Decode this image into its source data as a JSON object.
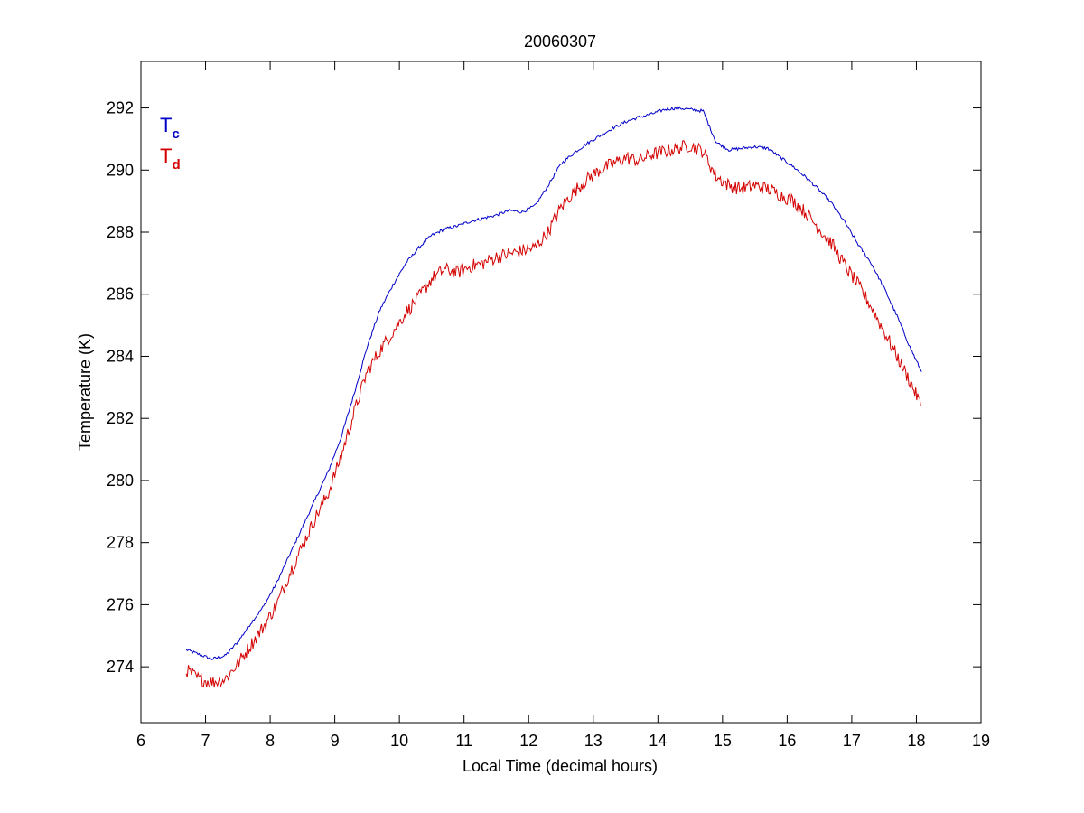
{
  "chart_data": {
    "type": "line",
    "title": "20060307",
    "xlabel": "Local Time (decimal hours)",
    "ylabel": "Temperature (K)",
    "xlim": [
      6,
      19
    ],
    "ylim": [
      272.2,
      293.5
    ],
    "xticks": [
      6,
      7,
      8,
      9,
      10,
      11,
      12,
      13,
      14,
      15,
      16,
      17,
      18,
      19
    ],
    "yticks": [
      274,
      276,
      278,
      280,
      282,
      284,
      286,
      288,
      290,
      292
    ],
    "grid": false,
    "legend_position": "top-left",
    "series": [
      {
        "name_main": "T",
        "name_sub": "c",
        "color": "#0000c8",
        "x": [
          6.7,
          6.9,
          7.1,
          7.3,
          7.5,
          7.7,
          7.9,
          8.1,
          8.3,
          8.5,
          8.7,
          8.9,
          9.1,
          9.3,
          9.5,
          9.7,
          9.9,
          10.1,
          10.3,
          10.5,
          10.7,
          10.9,
          11.1,
          11.3,
          11.5,
          11.7,
          11.9,
          12.1,
          12.3,
          12.5,
          12.7,
          12.9,
          13.1,
          13.3,
          13.5,
          13.7,
          13.9,
          14.1,
          14.3,
          14.5,
          14.7,
          14.9,
          15.1,
          15.3,
          15.5,
          15.7,
          15.9,
          16.1,
          16.3,
          16.5,
          16.7,
          16.9,
          17.1,
          17.3,
          17.5,
          17.7,
          17.9,
          18.08
        ],
        "y": [
          274.55,
          274.4,
          274.25,
          274.35,
          274.8,
          275.4,
          275.95,
          276.7,
          277.6,
          278.5,
          279.4,
          280.3,
          281.4,
          282.8,
          284.3,
          285.5,
          286.3,
          287.0,
          287.5,
          287.9,
          288.1,
          288.2,
          288.35,
          288.45,
          288.55,
          288.7,
          288.65,
          288.85,
          289.5,
          290.2,
          290.55,
          290.85,
          291.1,
          291.35,
          291.55,
          291.7,
          291.8,
          291.95,
          292.0,
          291.95,
          291.9,
          290.9,
          290.65,
          290.7,
          290.75,
          290.7,
          290.4,
          290.1,
          289.75,
          289.35,
          288.9,
          288.3,
          287.6,
          287.0,
          286.2,
          285.3,
          284.3,
          283.5
        ]
      },
      {
        "name_main": "T",
        "name_sub": "d",
        "color": "#d40000",
        "x": [
          6.7,
          6.9,
          7.1,
          7.3,
          7.5,
          7.7,
          7.9,
          8.1,
          8.3,
          8.5,
          8.7,
          8.9,
          9.1,
          9.3,
          9.5,
          9.7,
          9.9,
          10.1,
          10.3,
          10.5,
          10.7,
          10.9,
          11.1,
          11.3,
          11.5,
          11.7,
          11.9,
          12.1,
          12.3,
          12.5,
          12.7,
          12.9,
          13.1,
          13.3,
          13.5,
          13.7,
          13.9,
          14.1,
          14.3,
          14.5,
          14.7,
          14.9,
          15.1,
          15.3,
          15.5,
          15.7,
          15.9,
          16.1,
          16.3,
          16.5,
          16.7,
          16.9,
          17.1,
          17.3,
          17.5,
          17.7,
          17.9,
          18.08
        ],
        "y": [
          273.9,
          273.6,
          273.5,
          273.6,
          274.1,
          274.7,
          275.3,
          276.0,
          277.0,
          277.9,
          278.8,
          279.6,
          280.8,
          282.2,
          283.5,
          284.2,
          284.8,
          285.4,
          285.9,
          286.5,
          286.8,
          286.7,
          286.9,
          287.0,
          287.2,
          287.3,
          287.4,
          287.5,
          288.0,
          288.8,
          289.3,
          289.7,
          290.0,
          290.2,
          290.4,
          290.3,
          290.5,
          290.6,
          290.7,
          290.8,
          290.6,
          289.8,
          289.5,
          289.4,
          289.5,
          289.4,
          289.2,
          289.0,
          288.6,
          288.1,
          287.6,
          286.9,
          286.3,
          285.6,
          284.8,
          284.0,
          283.2,
          282.4
        ]
      }
    ]
  }
}
